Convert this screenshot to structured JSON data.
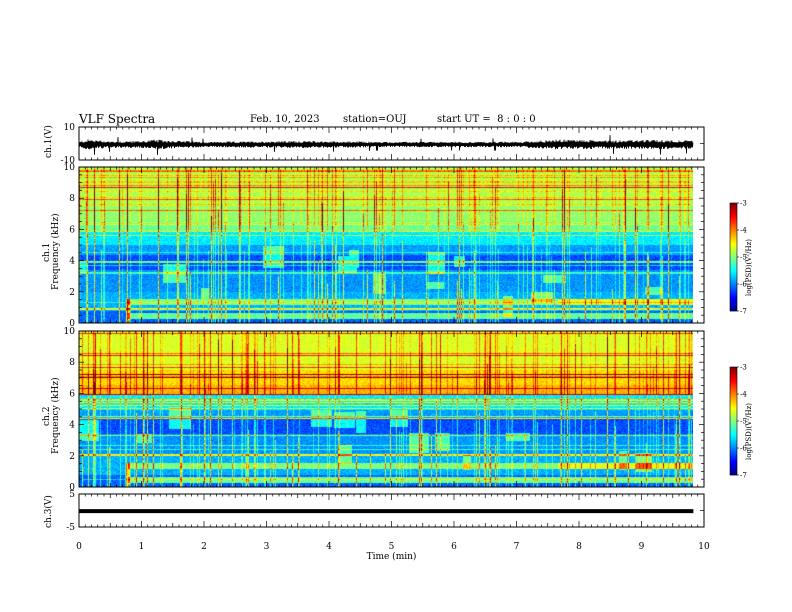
{
  "header": {
    "title": "VLF Spectra",
    "date": "Feb. 10, 2023",
    "station": "station=OUJ",
    "start": "start UT =  8 : 0 : 0"
  },
  "chart_data": [
    {
      "type": "line",
      "name": "ch1-waveform",
      "ylabel": "ch.1(V)",
      "ylim": [
        -10,
        10
      ],
      "yticks": [
        "10",
        "-10"
      ],
      "xlim": [
        0,
        10
      ],
      "x_end": 9.83,
      "envelope": [
        {
          "t": 0.0,
          "amp": 1.6
        },
        {
          "t": 0.15,
          "amp": 3.2
        },
        {
          "t": 0.5,
          "amp": 2.0
        },
        {
          "t": 1.0,
          "amp": 2.2
        },
        {
          "t": 1.2,
          "amp": 3.0
        },
        {
          "t": 2.0,
          "amp": 1.6
        },
        {
          "t": 3.5,
          "amp": 2.2
        },
        {
          "t": 5.0,
          "amp": 1.6
        },
        {
          "t": 7.0,
          "amp": 1.7
        },
        {
          "t": 7.7,
          "amp": 3.0
        },
        {
          "t": 8.5,
          "amp": 2.6
        },
        {
          "t": 9.3,
          "amp": 2.8
        },
        {
          "t": 9.83,
          "amp": 2.4
        }
      ]
    },
    {
      "type": "heatmap",
      "name": "ch1-spectrogram",
      "ylabel_line1": "ch.1",
      "ylabel_line2": "Frequency (kHz)",
      "ylim": [
        0,
        10
      ],
      "yticks": [
        0,
        2,
        4,
        6,
        8,
        10
      ],
      "xlim": [
        0,
        10
      ],
      "x_end": 9.83,
      "colorbar": {
        "label": "log(PSD)(V²/Hz)",
        "range": [
          -7,
          -3
        ],
        "ticks": [
          "-3",
          "-4",
          "-5",
          "-6",
          "-7"
        ]
      }
    },
    {
      "type": "heatmap",
      "name": "ch2-spectrogram",
      "ylabel_line1": "ch.2",
      "ylabel_line2": "Frequency (kHz)",
      "ylim": [
        0,
        10
      ],
      "yticks": [
        0,
        2,
        4,
        6,
        8,
        10
      ],
      "xlim": [
        0,
        10
      ],
      "x_end": 9.83,
      "colorbar": {
        "label": "log(PSD)(V²/Hz)",
        "range": [
          -7,
          -3
        ],
        "ticks": [
          "-3",
          "-4",
          "-5",
          "-6",
          "-7"
        ]
      }
    },
    {
      "type": "line",
      "name": "ch3-waveform",
      "ylabel": "ch.3(V)",
      "ylim": [
        -5,
        5
      ],
      "yticks": [
        "5",
        "-5"
      ],
      "xlim": [
        0,
        10
      ],
      "x_end": 9.83,
      "level": -0.2
    }
  ],
  "xaxis": {
    "label": "Time (min)",
    "ticks": [
      "0",
      "1",
      "2",
      "3",
      "4",
      "5",
      "6",
      "7",
      "8",
      "9",
      "10"
    ]
  }
}
